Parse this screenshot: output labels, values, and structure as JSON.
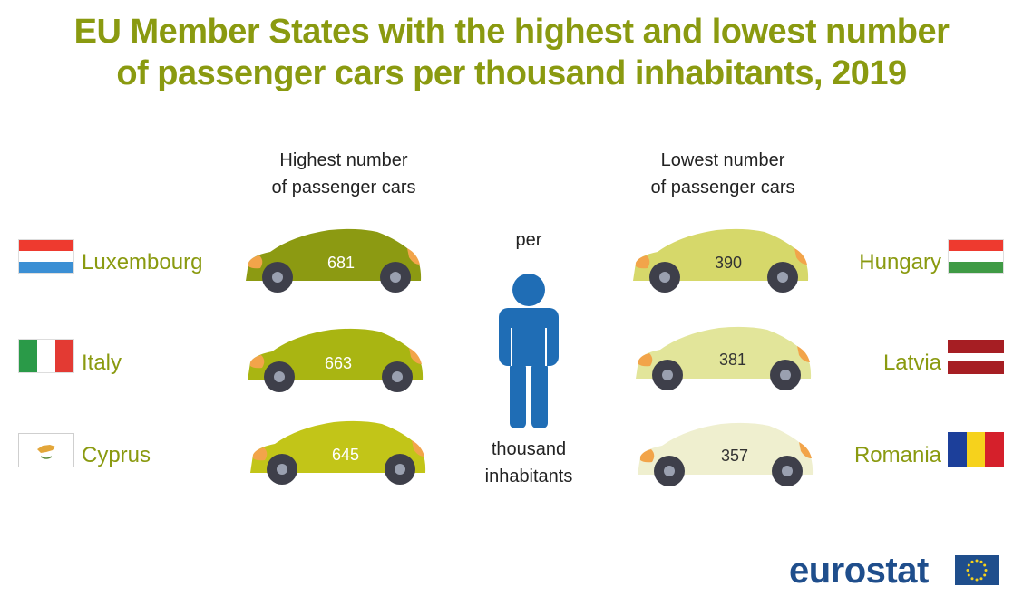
{
  "title": {
    "line1": "EU Member States with the highest and lowest number",
    "line2": "of passenger cars per thousand inhabitants, 2019"
  },
  "headers": {
    "highest_line1": "Highest number",
    "highest_line2": "of passenger cars",
    "lowest_line1": "Lowest number",
    "lowest_line2": "of passenger cars"
  },
  "center": {
    "per": "per",
    "thousand": "thousand",
    "inhabitants": "inhabitants"
  },
  "chart_data": {
    "type": "table",
    "title": "EU Member States with the highest and lowest number of passenger cars per thousand inhabitants, 2019",
    "unit": "passenger cars per thousand inhabitants",
    "series": [
      {
        "name": "Highest number of passenger cars",
        "categories": [
          "Luxembourg",
          "Italy",
          "Cyprus"
        ],
        "values": [
          681,
          663,
          645
        ]
      },
      {
        "name": "Lowest number of passenger cars",
        "categories": [
          "Hungary",
          "Latvia",
          "Romania"
        ],
        "values": [
          390,
          381,
          357
        ]
      }
    ]
  },
  "colors": {
    "title": "#8a9a10",
    "high_cars": [
      "#8c9a12",
      "#a9b512",
      "#c2c518"
    ],
    "low_cars": [
      "#d6d86a",
      "#e2e59a",
      "#efefcf"
    ],
    "wheel": "#3e3f4a",
    "light": "#f2a44a",
    "eurostat": "#1f4e8c"
  },
  "logo": {
    "text": "eurostat",
    "eu_flag_icon": "eu-flag-icon"
  }
}
